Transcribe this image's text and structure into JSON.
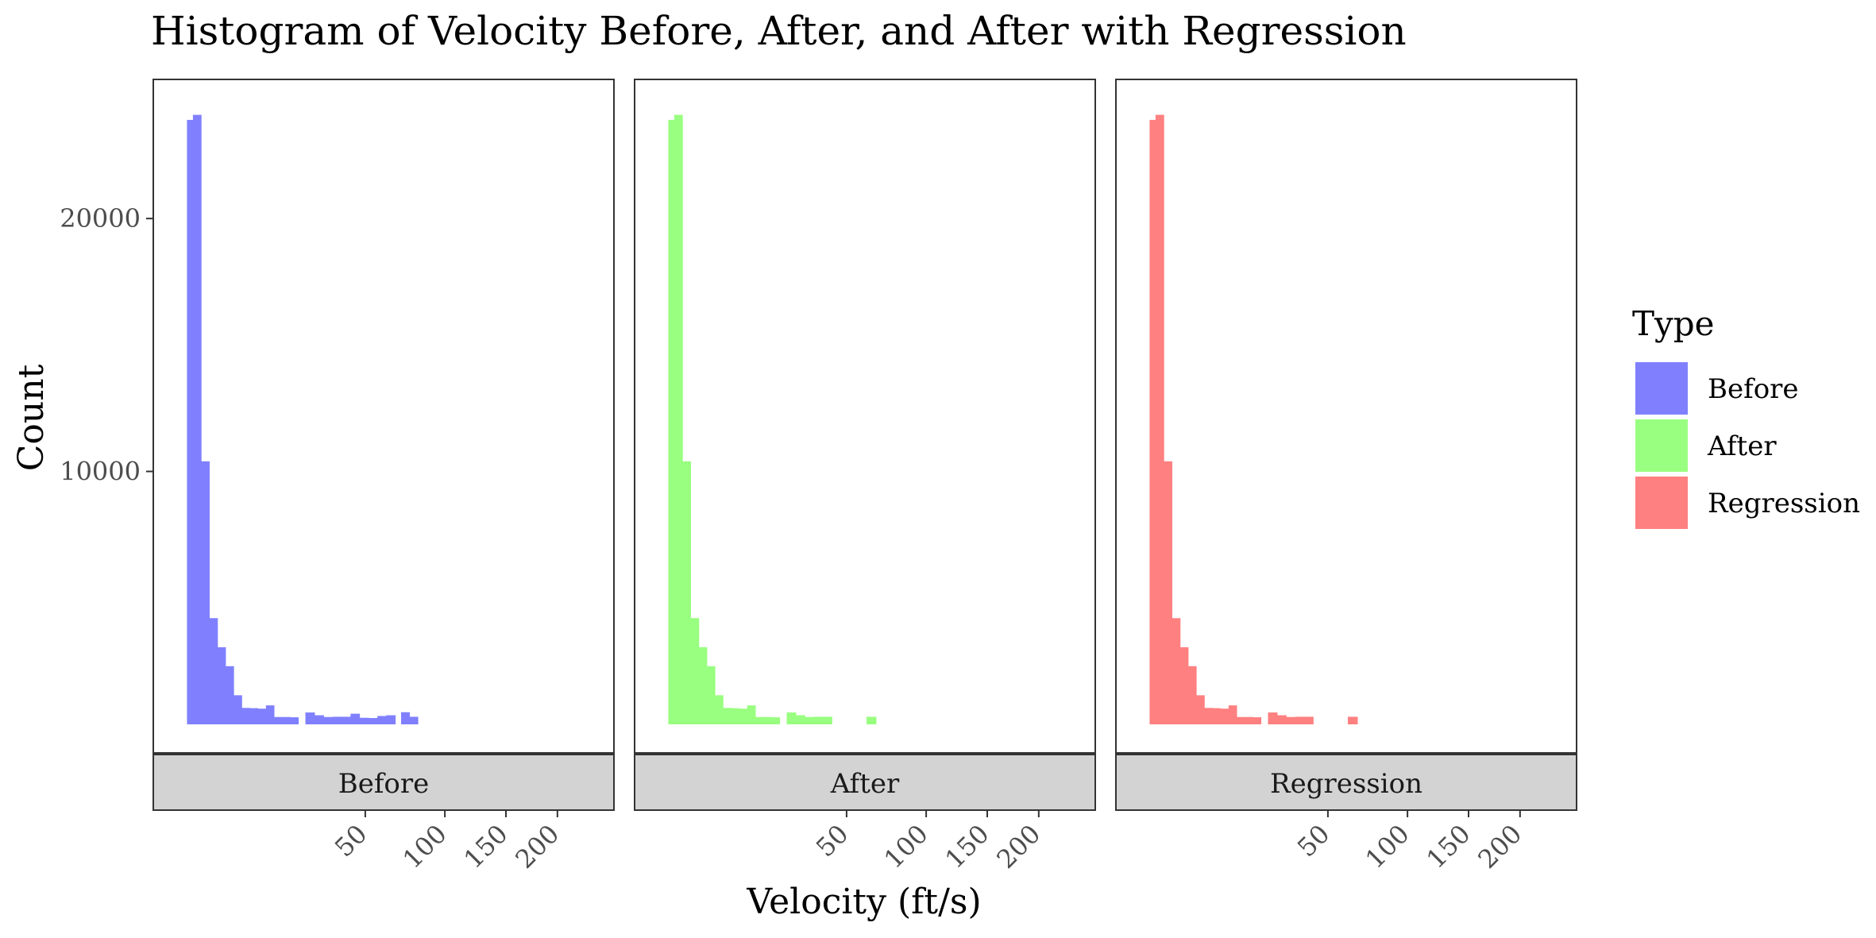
{
  "chart_data": {
    "type": "histogram",
    "title": "Histogram of Velocity Before, After, and After with Regression",
    "xlabel": "Velocity (ft/s)",
    "ylabel": "Count",
    "x_scale": "sqrt",
    "xlim": [
      0,
      240
    ],
    "ylim": [
      0,
      25500
    ],
    "x_ticks": [
      50,
      100,
      150,
      200
    ],
    "x_tick_labels": [
      "50",
      "100",
      "150",
      "200"
    ],
    "y_ticks": [
      10000,
      20000
    ],
    "y_tick_labels": [
      "10000",
      "20000"
    ],
    "grid": false,
    "legend": {
      "title": "Type",
      "position": "right",
      "entries": [
        "Before",
        "After",
        "Regression"
      ]
    },
    "series": [
      {
        "name": "Before",
        "color": "#8080ff",
        "bins": [
          [
            0.26,
            0.53,
            23900
          ],
          [
            0.53,
            1.06,
            24100
          ],
          [
            1.06,
            1.77,
            10400
          ],
          [
            1.77,
            2.66,
            4200
          ],
          [
            2.66,
            3.71,
            3050
          ],
          [
            3.71,
            4.95,
            2300
          ],
          [
            4.95,
            6.36,
            1150
          ],
          [
            6.36,
            7.95,
            650
          ],
          [
            7.95,
            9.72,
            640
          ],
          [
            9.72,
            11.66,
            620
          ],
          [
            11.66,
            13.78,
            750
          ],
          [
            13.78,
            16.08,
            290
          ],
          [
            16.08,
            18.56,
            290
          ],
          [
            18.56,
            21.21,
            280
          ],
          [
            23.69,
            27.06,
            470
          ],
          [
            27.06,
            30.64,
            360
          ],
          [
            30.64,
            34.42,
            290
          ],
          [
            34.42,
            38.42,
            300
          ],
          [
            38.42,
            42.62,
            300
          ],
          [
            42.62,
            47.04,
            420
          ],
          [
            47.04,
            51.66,
            260
          ],
          [
            51.66,
            56.5,
            250
          ],
          [
            56.5,
            61.55,
            330
          ],
          [
            61.55,
            66.81,
            360
          ],
          [
            70.38,
            75.61,
            480
          ],
          [
            75.61,
            81.1,
            300
          ]
        ]
      },
      {
        "name": "After",
        "color": "#99ff80",
        "bins": [
          [
            0.26,
            0.53,
            23900
          ],
          [
            0.53,
            1.06,
            24100
          ],
          [
            1.06,
            1.77,
            10400
          ],
          [
            1.77,
            2.66,
            4200
          ],
          [
            2.66,
            3.71,
            3050
          ],
          [
            3.71,
            4.95,
            2300
          ],
          [
            4.95,
            6.36,
            1150
          ],
          [
            6.36,
            7.95,
            650
          ],
          [
            7.95,
            9.72,
            640
          ],
          [
            9.72,
            11.66,
            620
          ],
          [
            11.66,
            13.78,
            750
          ],
          [
            13.78,
            16.08,
            290
          ],
          [
            16.08,
            18.56,
            290
          ],
          [
            18.56,
            21.21,
            280
          ],
          [
            23.69,
            27.06,
            470
          ],
          [
            27.06,
            30.64,
            360
          ],
          [
            30.64,
            34.42,
            290
          ],
          [
            34.42,
            38.42,
            300
          ],
          [
            38.42,
            42.62,
            300
          ],
          [
            60.9,
            66.5,
            300
          ]
        ]
      },
      {
        "name": "Regression",
        "color": "#ff8080",
        "bins": [
          [
            0.26,
            0.53,
            23900
          ],
          [
            0.53,
            1.06,
            24100
          ],
          [
            1.06,
            1.77,
            10400
          ],
          [
            1.77,
            2.66,
            4200
          ],
          [
            2.66,
            3.71,
            3050
          ],
          [
            3.71,
            4.95,
            2300
          ],
          [
            4.95,
            6.36,
            1150
          ],
          [
            6.36,
            7.95,
            650
          ],
          [
            7.95,
            9.72,
            640
          ],
          [
            9.72,
            11.66,
            620
          ],
          [
            11.66,
            13.78,
            750
          ],
          [
            13.78,
            16.08,
            290
          ],
          [
            16.08,
            18.56,
            290
          ],
          [
            18.56,
            21.21,
            280
          ],
          [
            23.69,
            27.06,
            470
          ],
          [
            27.06,
            30.64,
            360
          ],
          [
            30.64,
            34.42,
            290
          ],
          [
            34.42,
            38.42,
            300
          ],
          [
            38.42,
            42.62,
            300
          ],
          [
            60.9,
            66.5,
            300
          ]
        ]
      }
    ],
    "facets": [
      "Before",
      "After",
      "Regression"
    ]
  }
}
